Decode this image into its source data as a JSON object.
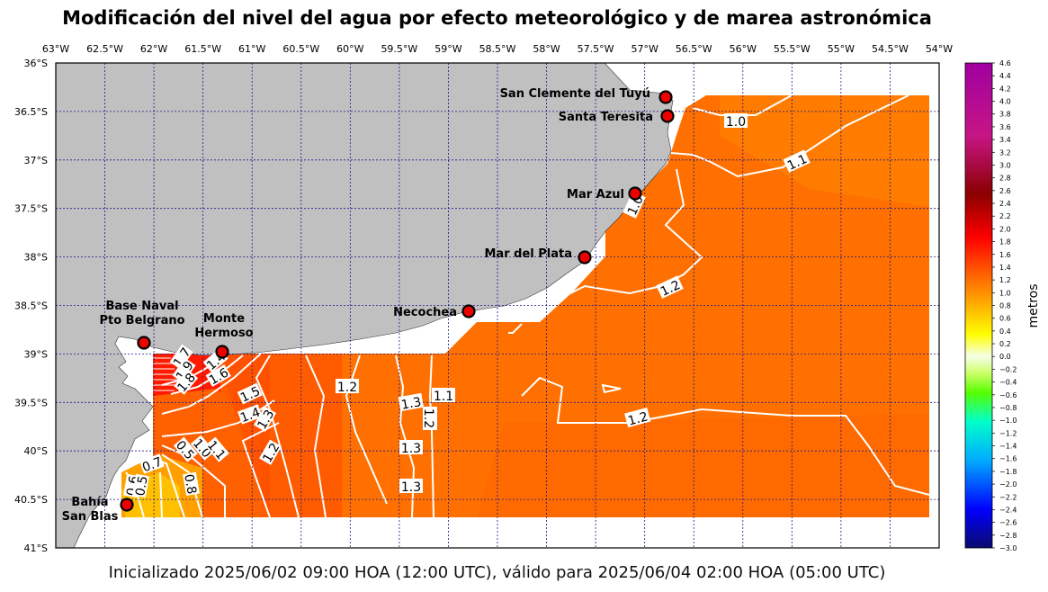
{
  "title": "Modificación del nivel del agua por efecto meteorológico y de marea astronómica",
  "footer": "Inicializado 2025/06/02 09:00 HOA (12:00 UTC), válido para 2025/06/04 02:00 HOA (05:00 UTC)",
  "map": {
    "lon_labels": [
      "63°W",
      "62.5°W",
      "62°W",
      "61.5°W",
      "61°W",
      "60.5°W",
      "60°W",
      "59.5°W",
      "59°W",
      "58.5°W",
      "58°W",
      "57.5°W",
      "57°W",
      "56.5°W",
      "56°W",
      "55.5°W",
      "55°W",
      "54.5°W",
      "54°W"
    ],
    "lat_labels": [
      "36°S",
      "36.5°S",
      "37°S",
      "37.5°S",
      "38°S",
      "38.5°S",
      "39°S",
      "39.5°S",
      "40°S",
      "40.5°S",
      "41°S"
    ],
    "lon_range": [
      -63,
      -54
    ],
    "lat_range": [
      -41,
      -36
    ],
    "grid": true
  },
  "stations": [
    {
      "name": "San Clemente del Tuyú",
      "lon": -56.7,
      "lat": -36.35
    },
    {
      "name": "Santa Teresita",
      "lon": -56.69,
      "lat": -36.55
    },
    {
      "name": "Mar Azul",
      "lon": -57.0,
      "lat": -37.35
    },
    {
      "name": "Mar del Plata",
      "lon": -57.53,
      "lat": -38.0
    },
    {
      "name": "Necochea",
      "lon": -58.73,
      "lat": -38.57
    },
    {
      "name": "Monte Hermoso",
      "lon": -61.27,
      "lat": -38.98
    },
    {
      "name": "Base Naval Pto Belgrano",
      "lon": -62.1,
      "lat": -38.88
    },
    {
      "name": "Bahía San Blas",
      "lon": -62.28,
      "lat": -40.56
    }
  ],
  "contour_labels": [
    "1.0",
    "1.1",
    "1.0",
    "1.2",
    "1.2",
    "1.2",
    "1.1",
    "1.3",
    "1.2",
    "1.3",
    "1.3",
    "1.7",
    "1.9",
    "1.8",
    "1.4",
    "1.6",
    "1.5",
    "1.4",
    "1.3",
    "1.2",
    "0.5",
    "1.0",
    "1.1",
    "0.7",
    "0.8",
    "0.6",
    "0.5"
  ],
  "colorbar": {
    "label": "metros",
    "ticks": [
      "4.6",
      "4.4",
      "4.2",
      "4.0",
      "3.8",
      "3.6",
      "3.4",
      "3.2",
      "3.0",
      "2.8",
      "2.6",
      "2.4",
      "2.2",
      "2.0",
      "1.8",
      "1.6",
      "1.4",
      "1.2",
      "1.0",
      "0.8",
      "0.6",
      "0.4",
      "0.2",
      "0.0",
      "−0.2",
      "−0.4",
      "−0.6",
      "−0.8",
      "−1.0",
      "−1.2",
      "−1.4",
      "−1.6",
      "−1.8",
      "−2.0",
      "−2.2",
      "−2.4",
      "−2.6",
      "−2.8",
      "−3.0"
    ],
    "range": [
      -3.0,
      4.6
    ],
    "colors": [
      "#0a0a6e",
      "#0000ff",
      "#00aaff",
      "#00ffcc",
      "#55ff00",
      "#ccff66",
      "#f5ffe8",
      "#ffff00",
      "#ffb000",
      "#ff6600",
      "#ff0000",
      "#8b0000",
      "#c71585",
      "#a000a0"
    ]
  },
  "colors": {
    "land": "#c0c0c0",
    "water_field": "#ff7000",
    "grid": "#1a1a8c",
    "station": "#ee0000"
  }
}
